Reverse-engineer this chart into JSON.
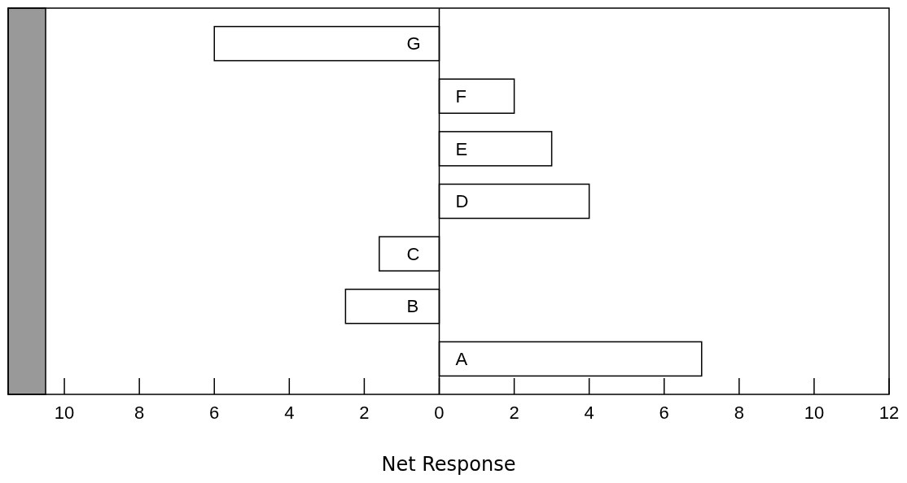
{
  "chart_data": {
    "type": "bar",
    "orientation": "horizontal",
    "xlabel": "Net Response",
    "categories": [
      "G",
      "F",
      "E",
      "D",
      "C",
      "B",
      "A"
    ],
    "values": [
      -6,
      2,
      3,
      4,
      -1.6,
      -2.5,
      7
    ],
    "color": "#ffffff",
    "xlim": [
      -11.5,
      12
    ],
    "xticks": [
      {
        "value": -10,
        "label": "10"
      },
      {
        "value": -8,
        "label": "8"
      },
      {
        "value": -6,
        "label": "6"
      },
      {
        "value": -4,
        "label": "4"
      },
      {
        "value": -2,
        "label": "2"
      },
      0,
      2,
      4,
      6,
      8,
      10,
      12
    ],
    "bands": [
      {
        "axis": "x",
        "from": -11.5,
        "to": -10.5,
        "color": "#999999"
      }
    ],
    "grid": false
  }
}
